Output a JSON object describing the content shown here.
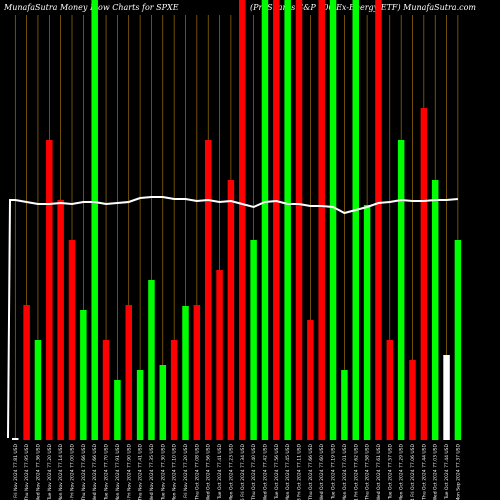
{
  "chart_data": {
    "type": "bar",
    "title_left": "MunafaSutra  Money Flow  Charts for SPXE",
    "title_right": "(ProShares S&P 500    Ex-Energy ETF) MunafaSutra.com",
    "ylim": [
      0,
      440
    ],
    "colors": {
      "up": "#00ff00",
      "down": "#ff0000",
      "flat": "#ffffff",
      "grid": "#b8860b",
      "line": "#ffffff",
      "background": "#000000"
    },
    "categories": [
      "22 Fri Nov 2024",
      "21 Thu Nov 2024",
      "20 Wed Nov 2024",
      "19 Tue Nov 2024",
      "18 Mon Nov 2024",
      "15 Fri Nov 2024",
      "14 Thu Nov 2024",
      "13 Wed Nov 2024",
      "12 Tue Nov 2024",
      "11 Mon Nov 2024",
      "08 Fri Nov 2024",
      "07 Thu Nov 2024",
      "06 Wed Nov 2024",
      "05 Tue Nov 2024",
      "04 Mon Nov 2024",
      "01 Fri Nov 2024",
      "31 Thu Oct 2024",
      "30 Wed Oct 2024",
      "29 Tue Oct 2024",
      "28 Mon Oct 2024",
      "25 Fri Oct 2024",
      "24 Thu Oct 2024",
      "23 Wed Oct 2024",
      "22 Tue Oct 2024",
      "21 Mon Oct 2024",
      "18 Fri Oct 2024",
      "17 Thu Oct 2024",
      "16 Wed Oct 2024",
      "15 Tue Oct 2024",
      "14 Mon Oct 2024",
      "11 Fri Oct 2024",
      "10 Thu Oct 2024",
      "09 Wed Oct 2024",
      "08 Tue Oct 2024",
      "07 Mon Oct 2024",
      "04 Fri Oct 2024",
      "03 Thu Oct 2024",
      "02 Wed Oct 2024",
      "01 Tue Oct 2024",
      "30 Mon Sep 2024"
    ],
    "prices": [
      "77.81 USD",
      "77.95 USD",
      "77.36 USD",
      "77.20 USD",
      "77.14 USD",
      "77.00 USD",
      "77.66 USD",
      "77.66 USD",
      "77.70 USD",
      "77.91 USD",
      "77.90 USD",
      "77.41 USD",
      "77.35 USD",
      "77.30 USD",
      "77.10 USD",
      "77.20 USD",
      "77.08 USD",
      "77.56 USD",
      "77.41 USD",
      "77.23 USD",
      "77.34 USD",
      "77.40 USD",
      "77.42 USD",
      "77.56 USD",
      "77.45 USD",
      "77.11 USD",
      "77.66 USD",
      "77.60 USD",
      "77.19 USD",
      "77.01 USD",
      "77.62 USD",
      "77.58 USD",
      "77.61 USD",
      "77.57 USD",
      "77.29 USD",
      "77.06 USD",
      "77.44 USD",
      "77.03 USD",
      "77.44 USD",
      "77.37 USD"
    ],
    "series": [
      {
        "values": [
          2,
          135,
          100,
          300,
          240,
          200,
          130,
          440,
          100,
          60,
          135,
          70,
          160,
          75,
          100,
          134,
          135,
          300,
          170,
          260,
          440,
          200,
          440,
          440,
          440,
          440,
          120,
          440,
          440,
          70,
          440,
          235,
          440,
          100,
          300,
          80,
          332,
          260,
          85,
          200
        ],
        "directions": [
          "flat",
          "down",
          "up",
          "down",
          "down",
          "down",
          "up",
          "up",
          "down",
          "up",
          "down",
          "up",
          "up",
          "up",
          "down",
          "up",
          "down",
          "down",
          "down",
          "down",
          "down",
          "up",
          "up",
          "down",
          "up",
          "down",
          "down",
          "down",
          "up",
          "up",
          "up",
          "up",
          "down",
          "down",
          "up",
          "down",
          "down",
          "up",
          "flat",
          "up"
        ]
      }
    ],
    "line_values": [
      240,
      238,
      236,
      236,
      237,
      236,
      238,
      238,
      236,
      237,
      238,
      242,
      243,
      243,
      241,
      241,
      239,
      240,
      238,
      239,
      236,
      233,
      238,
      239,
      236,
      236,
      234,
      234,
      233,
      227,
      230,
      233,
      237,
      238,
      240,
      239,
      239,
      240,
      240,
      241
    ]
  }
}
